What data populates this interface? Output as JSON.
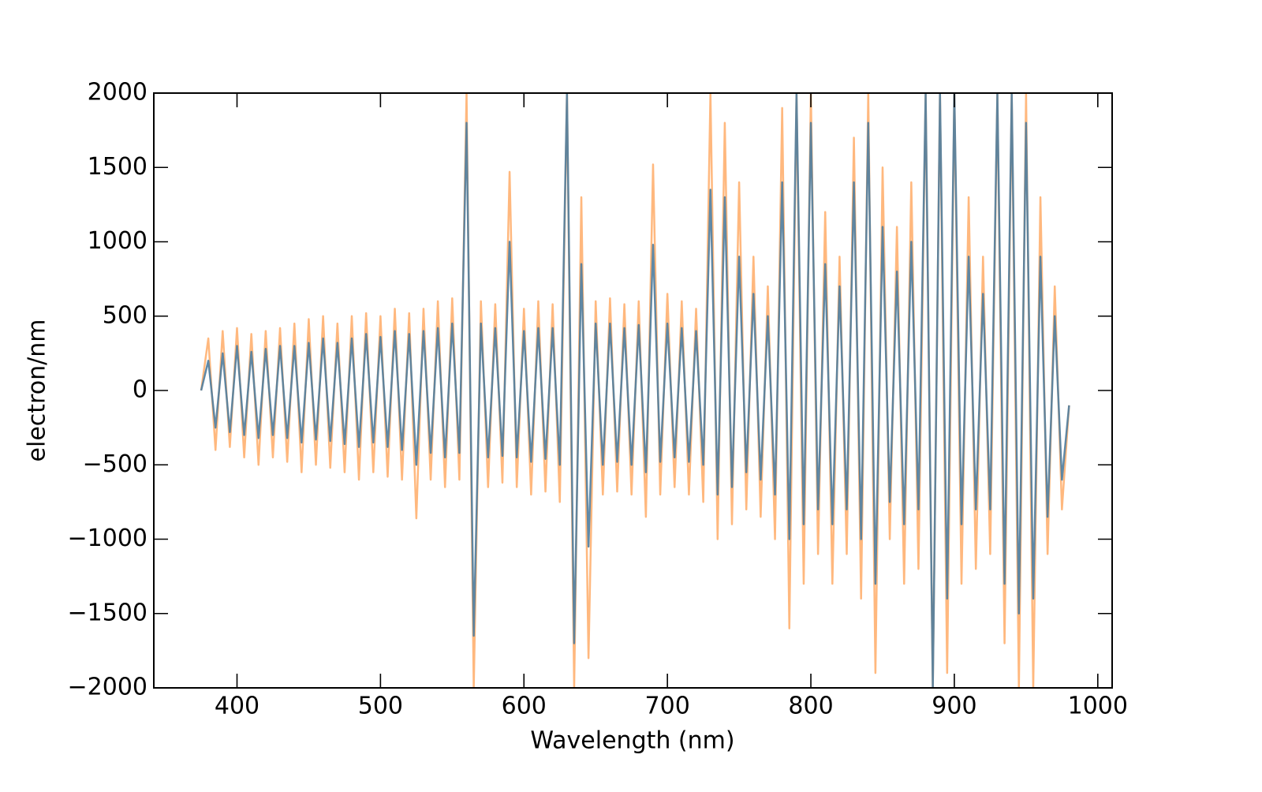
{
  "chart_data": {
    "type": "line",
    "x_label": "Wavelength (nm)",
    "y_label": "electron/nm",
    "x": [
      375,
      380,
      385,
      390,
      395,
      400,
      405,
      410,
      415,
      420,
      425,
      430,
      435,
      440,
      445,
      450,
      455,
      460,
      465,
      470,
      475,
      480,
      485,
      490,
      495,
      500,
      505,
      510,
      515,
      520,
      525,
      530,
      535,
      540,
      545,
      550,
      555,
      560,
      565,
      570,
      575,
      580,
      585,
      590,
      595,
      600,
      605,
      610,
      615,
      620,
      625,
      630,
      635,
      640,
      645,
      650,
      655,
      660,
      665,
      670,
      675,
      680,
      685,
      690,
      695,
      700,
      705,
      710,
      715,
      720,
      725,
      730,
      735,
      740,
      745,
      750,
      755,
      760,
      765,
      770,
      775,
      780,
      785,
      790,
      795,
      800,
      805,
      810,
      815,
      820,
      825,
      830,
      835,
      840,
      845,
      850,
      855,
      860,
      865,
      870,
      875,
      880,
      885,
      890,
      895,
      900,
      905,
      910,
      915,
      920,
      925,
      930,
      935,
      940,
      945,
      950,
      955,
      960,
      965,
      970,
      975,
      980
    ],
    "series": [
      {
        "color": "#ffb070",
        "opacity": 0.9,
        "values": [
          0,
          350,
          -400,
          400,
          -380,
          420,
          -450,
          380,
          -500,
          400,
          -450,
          420,
          -480,
          450,
          -550,
          480,
          -500,
          500,
          -520,
          450,
          -550,
          500,
          -600,
          520,
          -550,
          500,
          -580,
          550,
          -600,
          520,
          -860,
          550,
          -600,
          600,
          -650,
          620,
          -600,
          2000,
          -2000,
          600,
          -650,
          580,
          -620,
          1470,
          -650,
          550,
          -700,
          600,
          -680,
          580,
          -750,
          2000,
          -2000,
          1300,
          -1800,
          600,
          -700,
          620,
          -680,
          580,
          -700,
          600,
          -850,
          1520,
          -700,
          650,
          -650,
          600,
          -700,
          550,
          -750,
          2000,
          -1000,
          1800,
          -900,
          1400,
          -800,
          900,
          -850,
          700,
          -1000,
          1900,
          -1600,
          2000,
          -1300,
          2000,
          -1100,
          1200,
          -1300,
          900,
          -1100,
          1700,
          -1400,
          2000,
          -1900,
          1500,
          -1000,
          1100,
          -1300,
          1400,
          -1200,
          2000,
          -2000,
          2000,
          -1900,
          2000,
          -1300,
          1300,
          -1200,
          900,
          -1100,
          2000,
          -1700,
          2000,
          -2000,
          2000,
          -2000,
          1300,
          -1100,
          700,
          -800,
          -100
        ]
      },
      {
        "color": "#4f7d9e",
        "opacity": 0.9,
        "values": [
          0,
          200,
          -250,
          250,
          -280,
          300,
          -300,
          260,
          -320,
          280,
          -300,
          300,
          -320,
          300,
          -350,
          320,
          -330,
          350,
          -340,
          320,
          -360,
          350,
          -380,
          380,
          -350,
          360,
          -380,
          400,
          -400,
          380,
          -500,
          400,
          -420,
          420,
          -450,
          450,
          -420,
          1800,
          -1650,
          450,
          -450,
          420,
          -440,
          1000,
          -450,
          400,
          -480,
          420,
          -460,
          420,
          -500,
          2000,
          -1700,
          850,
          -1050,
          450,
          -500,
          450,
          -480,
          420,
          -500,
          440,
          -550,
          980,
          -480,
          450,
          -450,
          420,
          -480,
          400,
          -500,
          1350,
          -700,
          1300,
          -650,
          900,
          -550,
          650,
          -600,
          500,
          -700,
          1400,
          -1000,
          2000,
          -900,
          1800,
          -800,
          850,
          -900,
          700,
          -800,
          1400,
          -1000,
          1800,
          -1300,
          1100,
          -750,
          800,
          -900,
          1000,
          -800,
          2000,
          -2000,
          2000,
          -1400,
          2000,
          -900,
          900,
          -800,
          650,
          -800,
          2000,
          -1300,
          2000,
          -1500,
          1800,
          -1400,
          900,
          -850,
          500,
          -600,
          -100
        ]
      }
    ],
    "xlim": [
      342,
      1010
    ],
    "ylim": [
      -2000,
      2000
    ],
    "xticks": [
      400,
      500,
      600,
      700,
      800,
      900,
      1000
    ],
    "yticks": [
      {
        "value": -2000,
        "label": "−2000"
      },
      {
        "value": -1500,
        "label": "−1500"
      },
      {
        "value": -1000,
        "label": "−1000"
      },
      {
        "value": -500,
        "label": "−500"
      },
      0,
      500,
      1000,
      1500,
      2000
    ]
  }
}
